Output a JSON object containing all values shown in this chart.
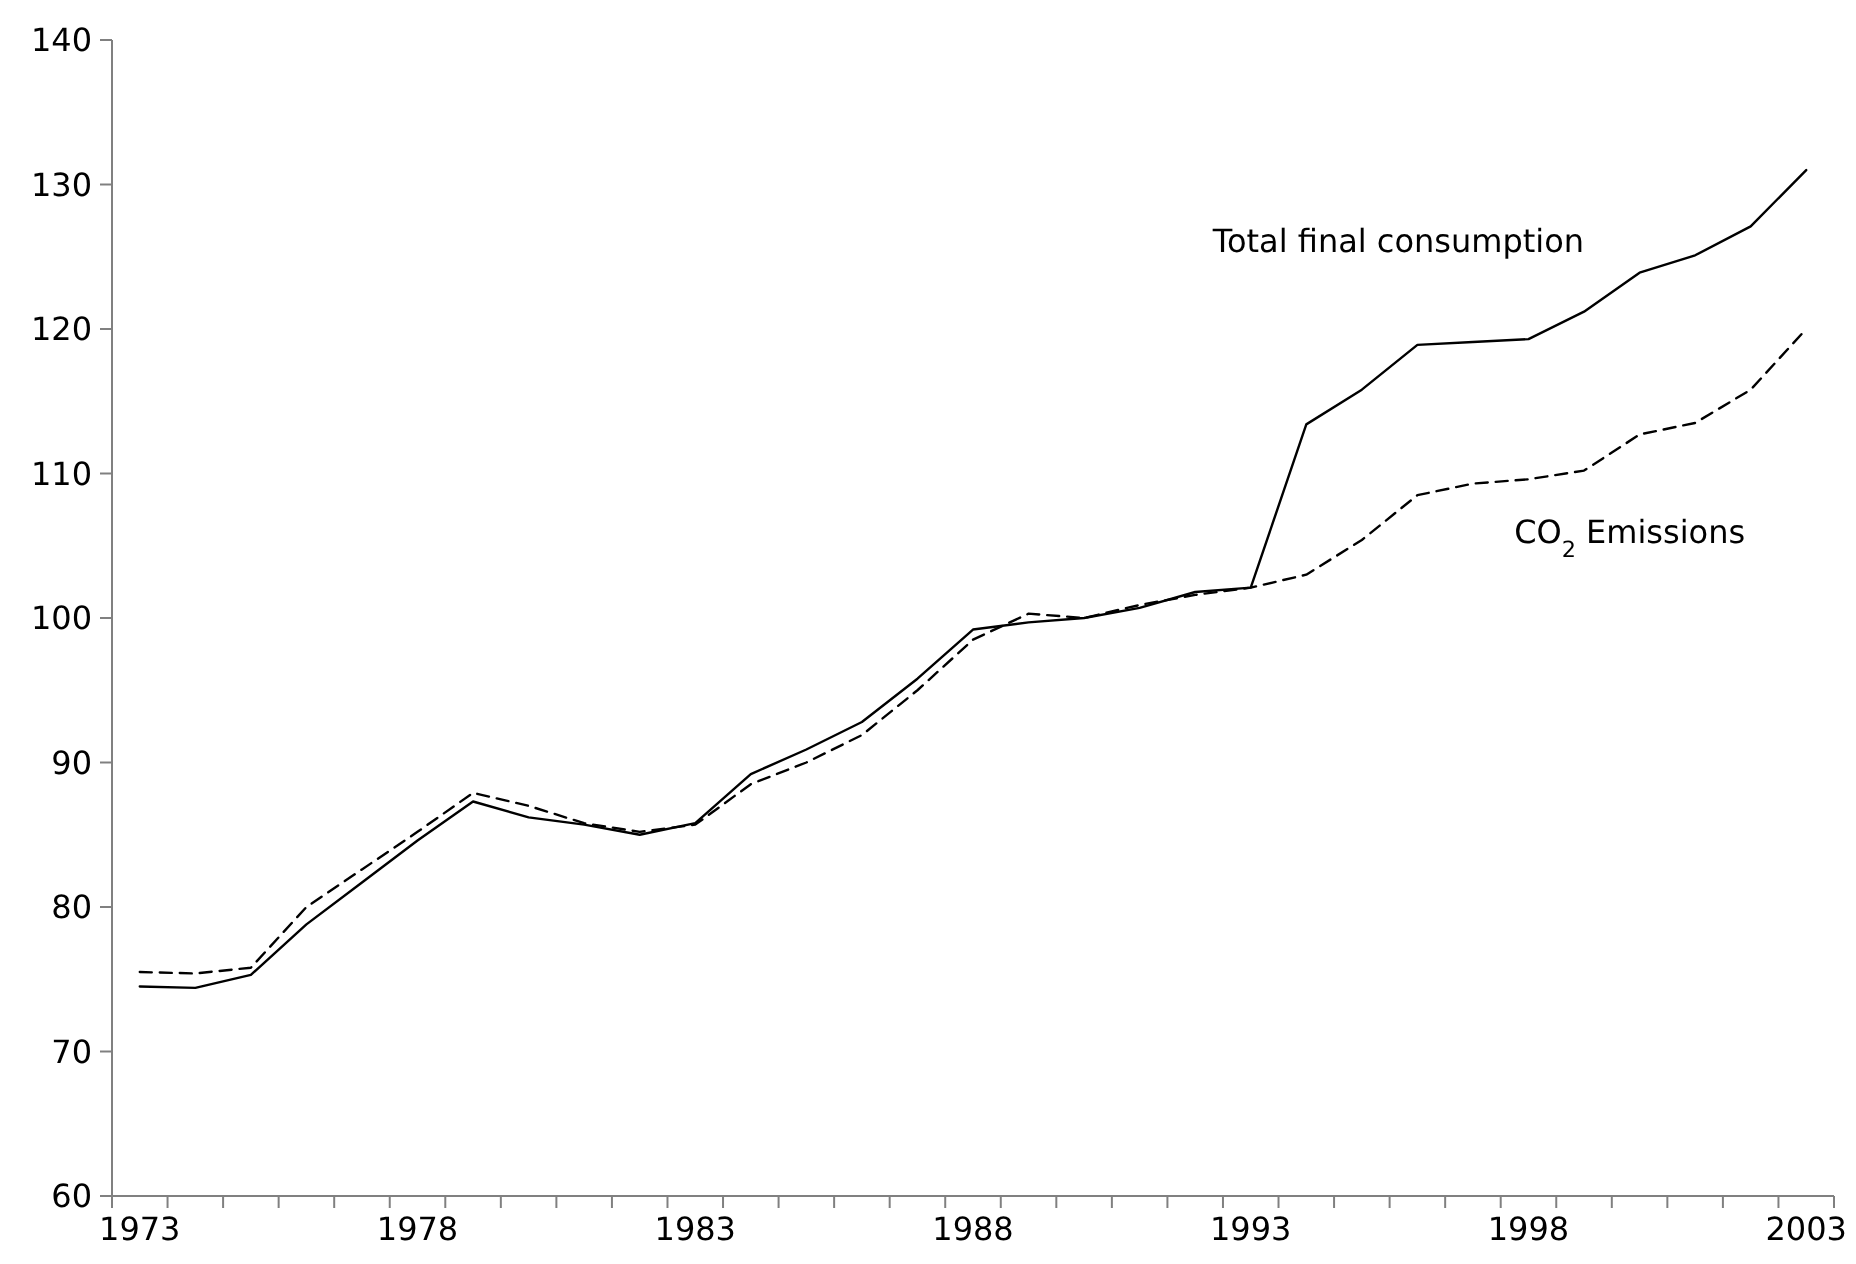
{
  "chart_data": {
    "type": "line",
    "categories": [
      "1973",
      null,
      null,
      null,
      null,
      "1978",
      null,
      null,
      null,
      null,
      "1983",
      null,
      null,
      null,
      null,
      "1988",
      null,
      null,
      null,
      null,
      "1993",
      null,
      null,
      null,
      null,
      "1998",
      null,
      null,
      null,
      null,
      "2003"
    ],
    "ylim": [
      60,
      140
    ],
    "yticks": [
      60,
      70,
      80,
      90,
      100,
      110,
      120,
      130,
      140
    ],
    "grid": false,
    "legend": false,
    "marker": "none",
    "series": [
      {
        "name": "Total final consumption",
        "color": "#000000",
        "line_style": "solid",
        "values": [
          74.5,
          74.4,
          75.3,
          78.8,
          81.7,
          84.6,
          87.3,
          86.2,
          85.7,
          85.0,
          85.8,
          89.2,
          90.9,
          92.8,
          95.8,
          99.2,
          99.7,
          100.0,
          100.7,
          101.8,
          102.1,
          113.4,
          115.8,
          118.9,
          119.1,
          119.3,
          121.2,
          123.9,
          125.1,
          127.1,
          131.0
        ]
      },
      {
        "name": "CO$_{2}$ Emissions",
        "color": "#000000",
        "line_style": "dashed",
        "values": [
          75.5,
          75.4,
          75.8,
          80.0,
          82.6,
          85.2,
          87.9,
          87.0,
          85.8,
          85.2,
          85.7,
          88.5,
          90.0,
          91.9,
          95.0,
          98.5,
          100.3,
          100.0,
          100.9,
          101.6,
          102.1,
          103.0,
          105.4,
          108.5,
          109.3,
          109.6,
          110.2,
          112.7,
          113.5,
          115.8,
          120.0
        ]
      }
    ]
  }
}
